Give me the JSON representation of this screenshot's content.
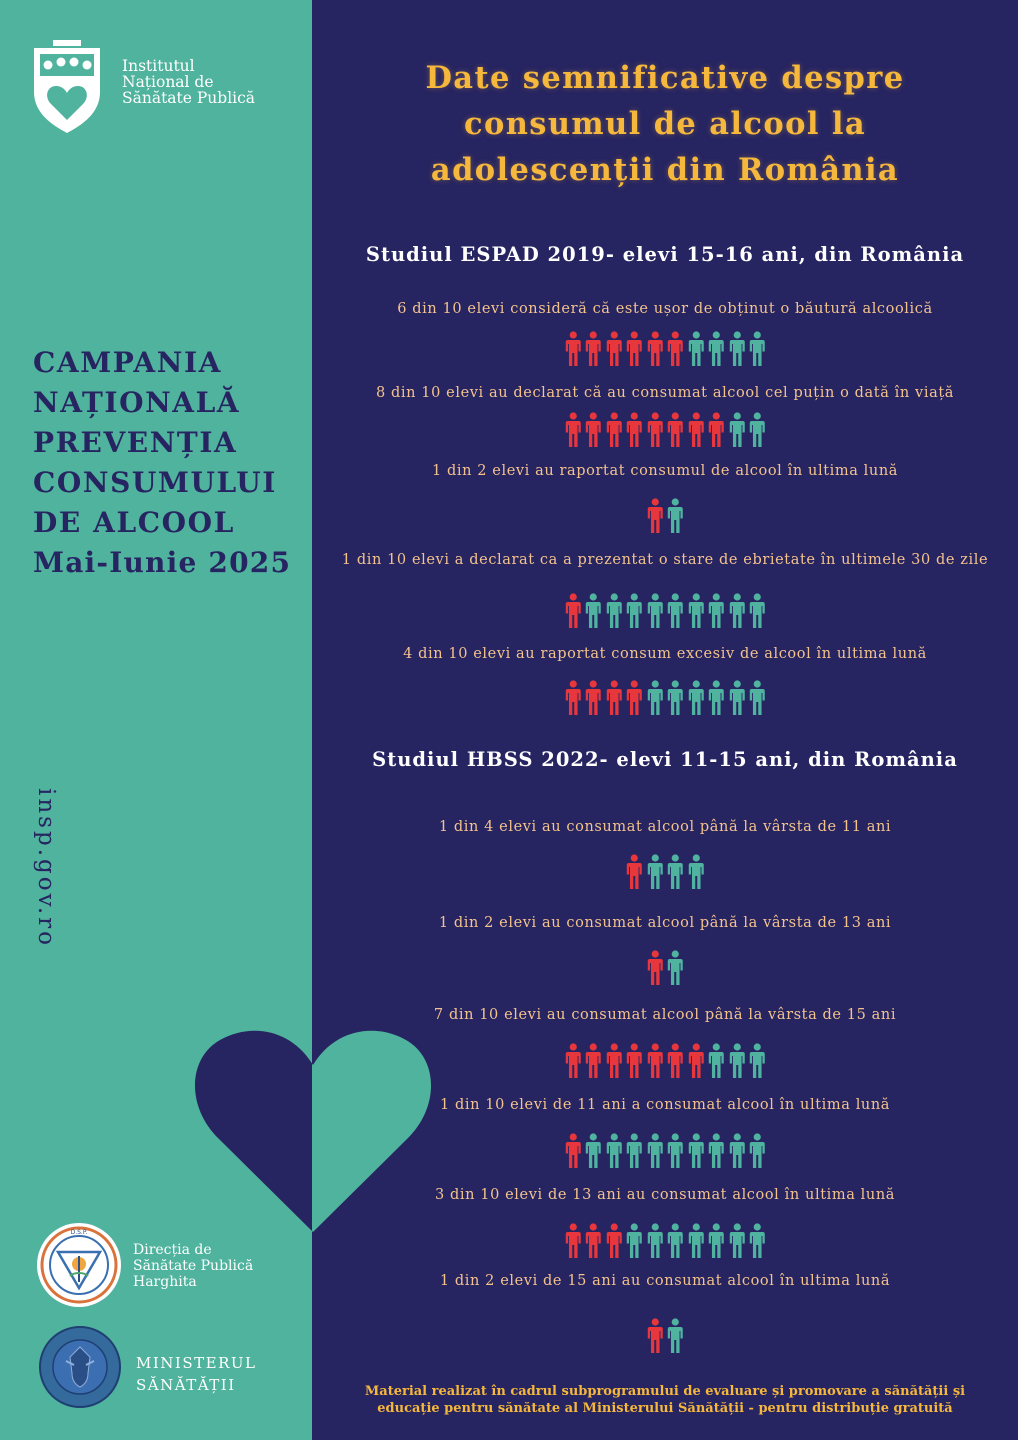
{
  "institute": {
    "line1": "Institutul",
    "line2": "Național de",
    "line3": "Sănătate Publică"
  },
  "campaign": {
    "line1": "CAMPANIA",
    "line2": "NAȚIONALĂ",
    "line3": "PREVENȚIA",
    "line4": "CONSUMULUI",
    "line5": "DE ALCOOL",
    "line6": "Mai-Iunie 2025"
  },
  "website": "insp.gov.ro",
  "partners": {
    "dsp": {
      "line1": "Direcția de",
      "line2": "Sănătate Publică",
      "line3": "Harghita",
      "logo_ring_text": "DIRECTIA DE SANATATE PUBLICA",
      "logo_top_text": "D.S.P."
    },
    "ministry": {
      "line1": "MINISTERUL",
      "line2": "SĂNĂTĂȚII",
      "logo_text": "GUVERNUL ROMÂNIEI"
    }
  },
  "title": {
    "line1": "Date semnificative despre",
    "line2": "consumul de alcool la",
    "line3": "adolescenții din România"
  },
  "studies": [
    {
      "heading": "Studiul ESPAD 2019- elevi 15-16 ani, din România",
      "stats": [
        {
          "text": "6 din 10 elevi consideră că este ușor de obținut o băutură alcoolică",
          "highlighted": 6,
          "total": 10
        },
        {
          "text": "8 din 10 elevi au declarat că au consumat alcool cel puțin o dată în viață",
          "highlighted": 8,
          "total": 10
        },
        {
          "text": "1 din 2 elevi au raportat consumul de alcool în ultima lună",
          "highlighted": 1,
          "total": 2
        },
        {
          "text": "1 din 10 elevi a declarat ca a prezentat o stare de ebrietate în ultimele 30 de zile",
          "highlighted": 1,
          "total": 10
        },
        {
          "text": "4 din 10 elevi au raportat consum excesiv de alcool în ultima lună",
          "highlighted": 4,
          "total": 10
        }
      ]
    },
    {
      "heading": "Studiul HBSS 2022- elevi 11-15 ani, din România",
      "stats": [
        {
          "text": "1 din 4 elevi au consumat alcool până la vârsta de 11 ani",
          "highlighted": 1,
          "total": 4
        },
        {
          "text": "1 din 2 elevi au consumat alcool până la vârsta de 13 ani",
          "highlighted": 1,
          "total": 2
        },
        {
          "text": "7 din 10 elevi au consumat alcool până la vârsta de 15 ani",
          "highlighted": 7,
          "total": 10
        },
        {
          "text": "1 din 10 elevi de 11 ani a consumat alcool în ultima lună",
          "highlighted": 1,
          "total": 10
        },
        {
          "text": "3 din 10 elevi de 13 ani au consumat alcool în ultima lună",
          "highlighted": 3,
          "total": 10
        },
        {
          "text": "1 din 2 elevi de 15 ani au consumat alcool în ultima lună",
          "highlighted": 1,
          "total": 2
        }
      ]
    }
  ],
  "footnote": {
    "line1": "Material realizat în cadrul subprogramului de evaluare și promovare a sănătății și",
    "line2": "educație pentru sănătate al Ministerului Sănătății - pentru distribuție gratuită"
  },
  "colors": {
    "navy": "#262461",
    "teal": "#50b39d",
    "highlight_red": "#e8363d",
    "icon_teal": "#4fb39f",
    "title_gold": "#f5b73c",
    "stat_text": "#f4c38d"
  }
}
